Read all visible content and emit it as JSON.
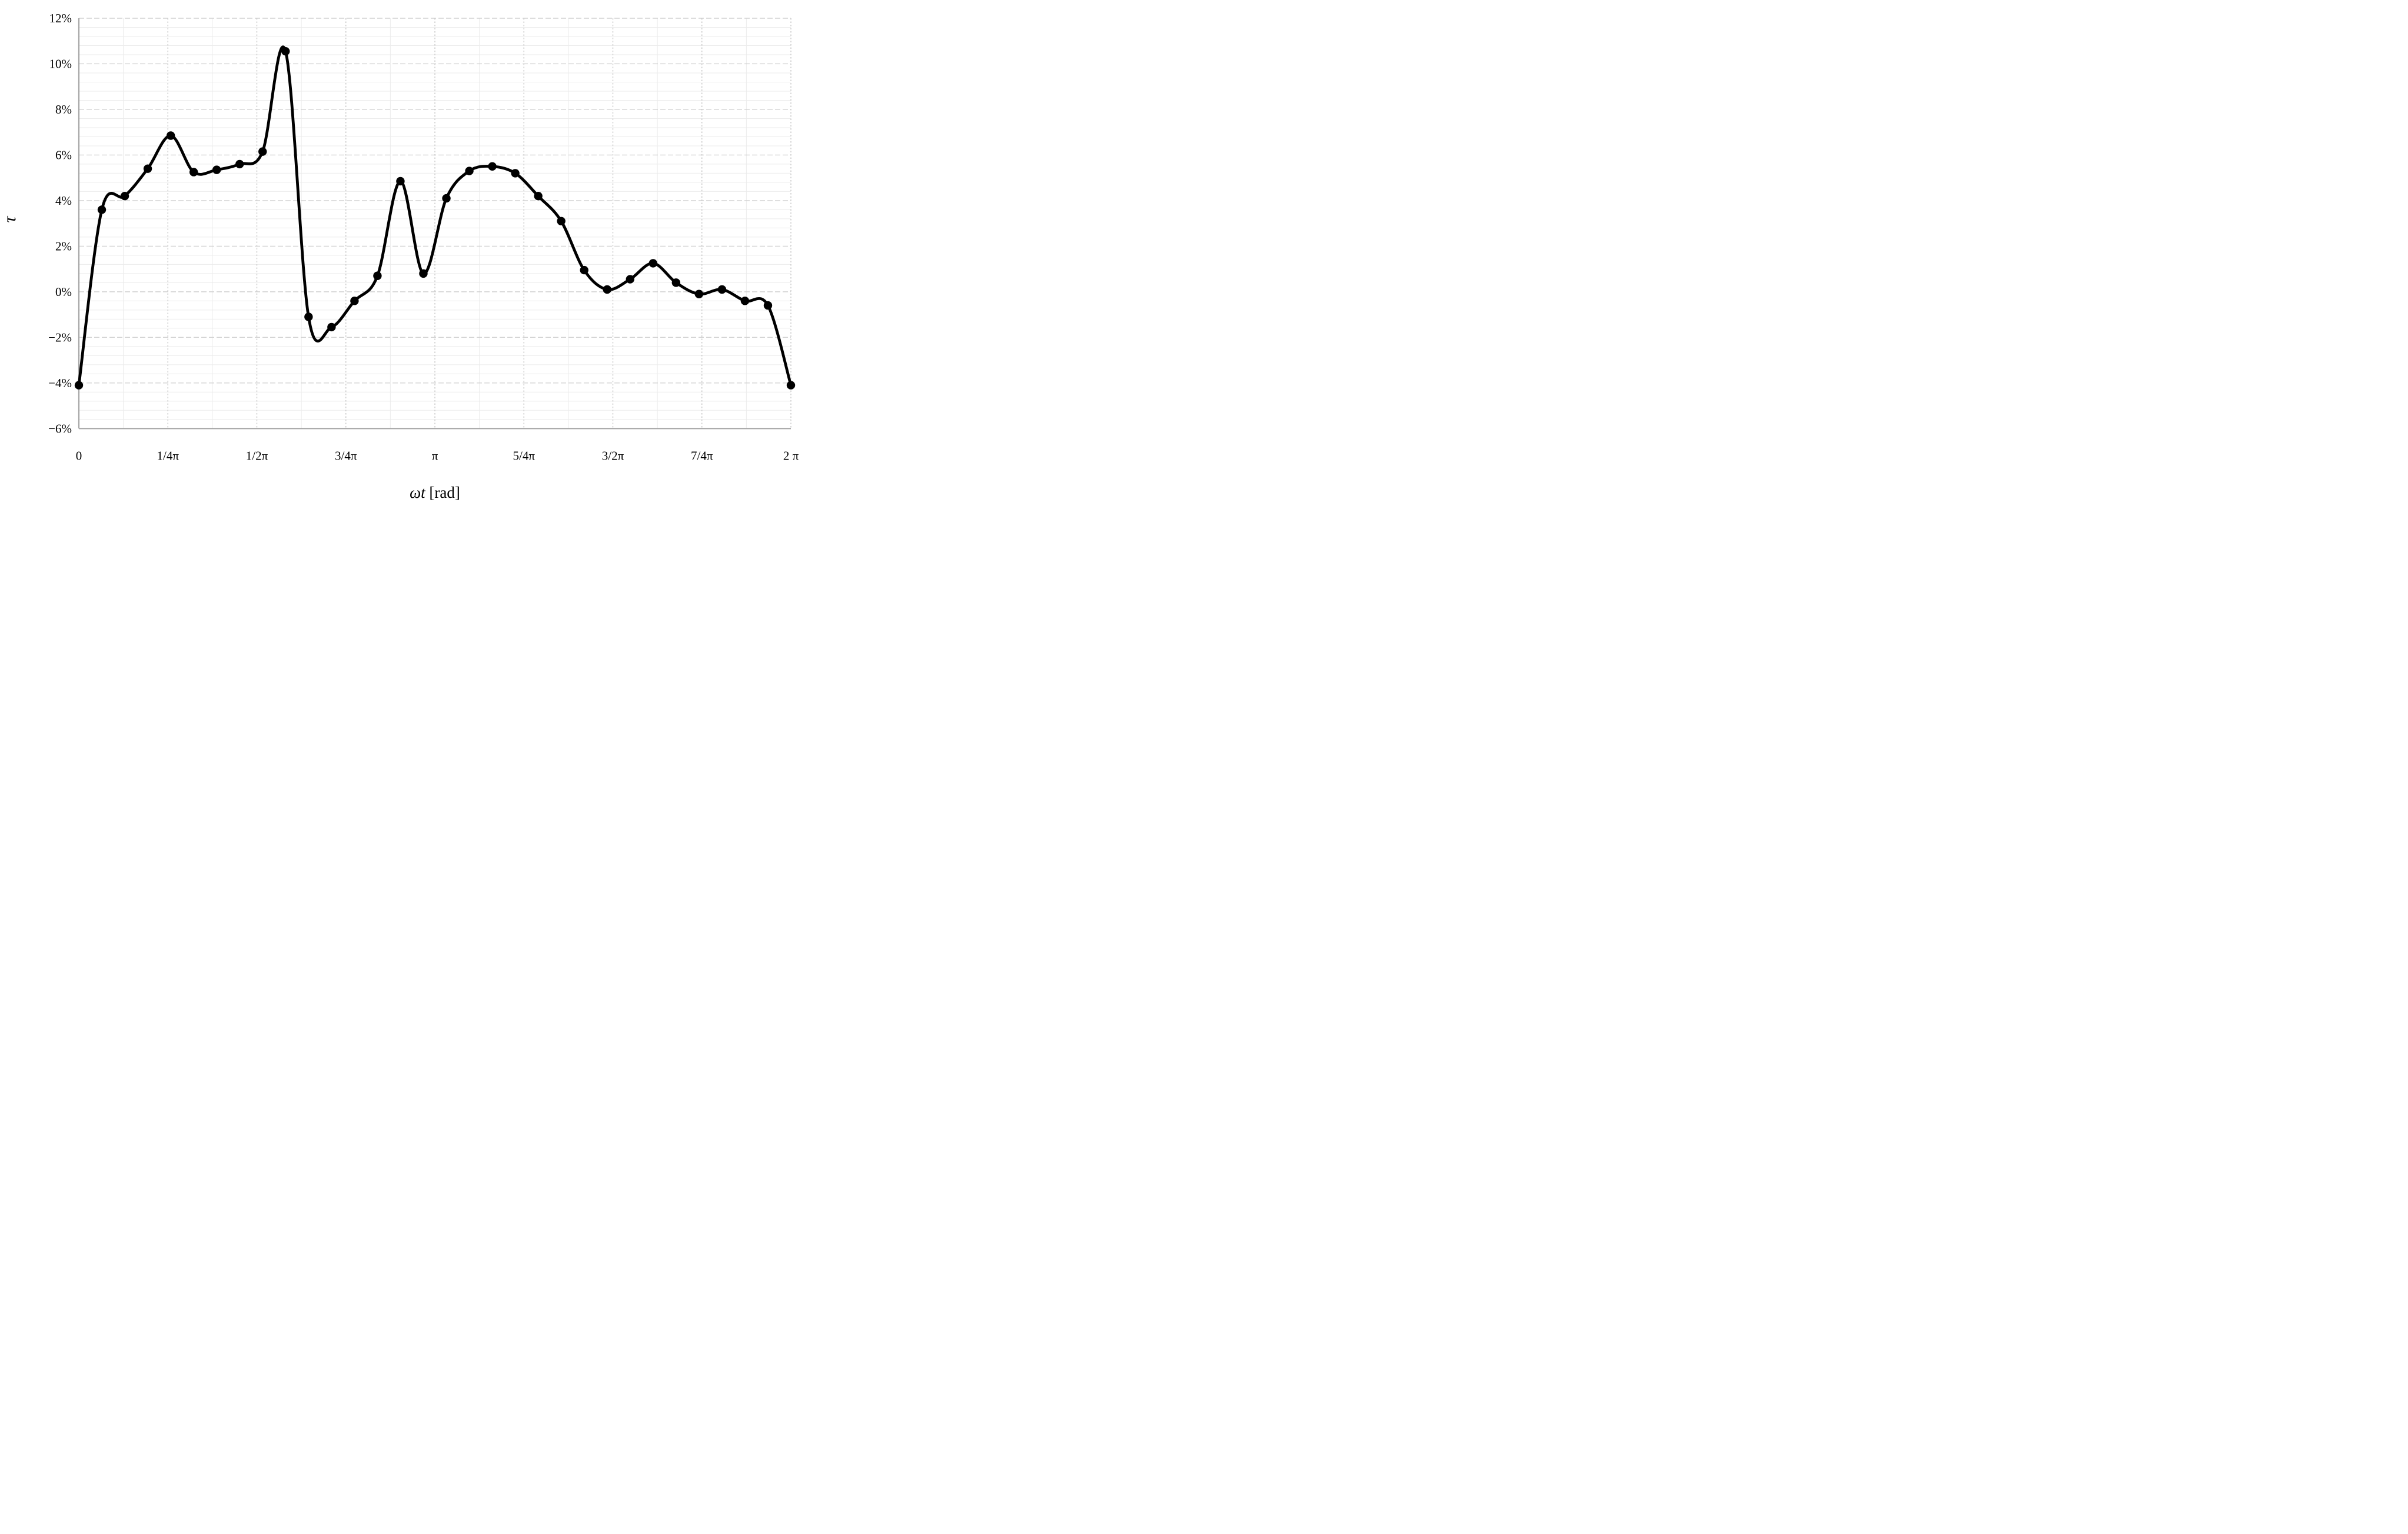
{
  "chart_data": {
    "type": "line",
    "title": "",
    "xlabel_parts": {
      "italic": "ωt",
      "normal": " [rad]"
    },
    "ylabel": "τ",
    "x_axis": {
      "tick_labels": [
        "0",
        "1/4π",
        "1/2π",
        "3/4π",
        "π",
        "5/4π",
        "3/2π",
        "7/4π",
        "2 π"
      ],
      "tick_positions_pi": [
        0,
        0.25,
        0.5,
        0.75,
        1,
        1.25,
        1.5,
        1.75,
        2
      ],
      "minor_step_pi": 0.125,
      "range_pi": [
        0,
        2
      ]
    },
    "y_axis": {
      "tick_labels": [
        "12%",
        "10%",
        "8%",
        "6%",
        "4%",
        "2%",
        "0%",
        "−2%",
        "−4%",
        "−6%"
      ],
      "tick_values": [
        12,
        10,
        8,
        6,
        4,
        2,
        0,
        -2,
        -4,
        -6
      ],
      "major_step_pct": 2,
      "minor_step_pct": 0.4,
      "ylim": [
        -6,
        12
      ],
      "unit": "%"
    },
    "grid": {
      "minor": true,
      "major": true
    },
    "legend": "none",
    "series": [
      {
        "name": "τ",
        "color": "#000000",
        "marker": "filled-circle",
        "smooth": true,
        "x_pi": [
          0.0,
          0.0645,
          0.129,
          0.1935,
          0.2581,
          0.3226,
          0.3871,
          0.4516,
          0.5161,
          0.5806,
          0.6452,
          0.7097,
          0.7742,
          0.8387,
          0.9032,
          0.9677,
          1.0323,
          1.0968,
          1.1613,
          1.2258,
          1.2903,
          1.3548,
          1.4194,
          1.4839,
          1.5484,
          1.6129,
          1.6774,
          1.7419,
          1.8065,
          1.871,
          1.9355,
          2.0
        ],
        "y_pct": [
          -4.1,
          3.6,
          4.2,
          5.4,
          6.85,
          5.25,
          5.35,
          5.6,
          6.15,
          10.55,
          -1.1,
          -1.55,
          -0.4,
          0.7,
          4.85,
          0.8,
          4.1,
          5.3,
          5.5,
          5.2,
          4.2,
          3.1,
          0.95,
          0.1,
          0.55,
          1.25,
          0.4,
          -0.1,
          0.1,
          -0.4,
          -0.6,
          -4.1
        ]
      }
    ],
    "colors": {
      "line": "#000000",
      "minor_grid": "#ebebeb",
      "major_grid": "#d2d2d2",
      "dotted_grid": "#c8c8c8",
      "axis": "#a6a6a6"
    }
  }
}
